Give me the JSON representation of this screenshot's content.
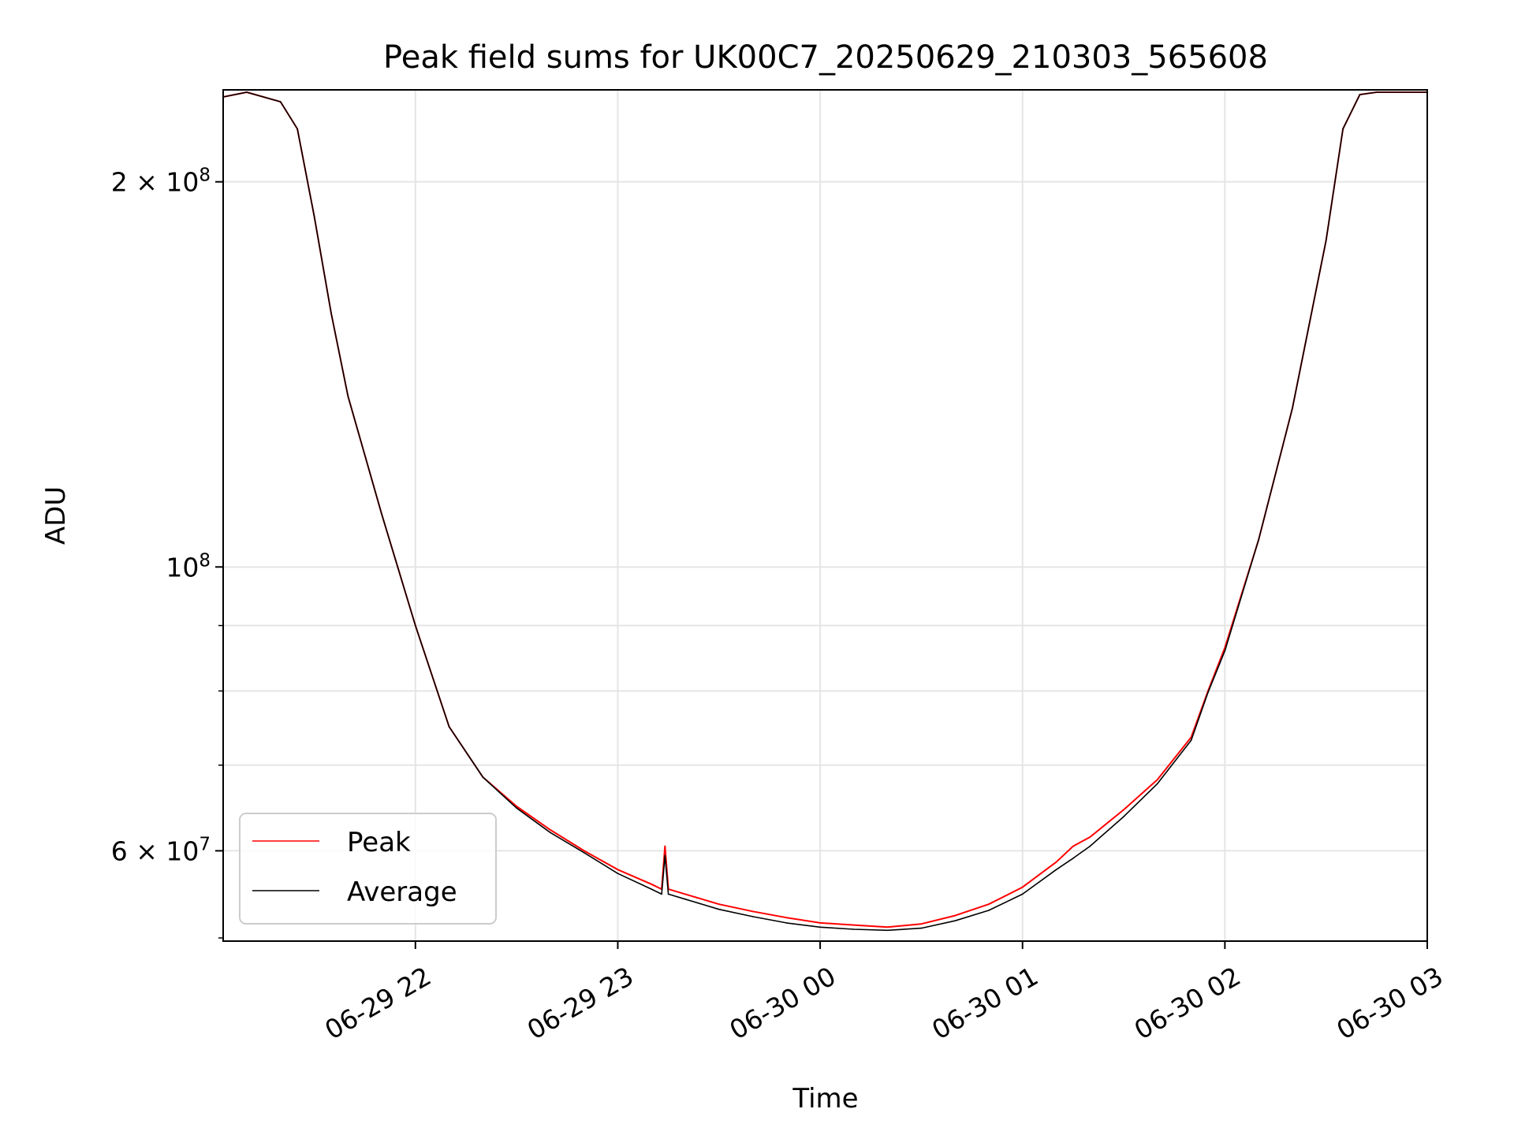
{
  "chart_data": {
    "type": "line",
    "title": "Peak field sums for UK00C7_20250629_210303_565608",
    "xlabel": "Time",
    "ylabel": "ADU",
    "y_scale": "log",
    "grid": true,
    "legend_position": "lower-left",
    "xlim": [
      "2025-06-29 21:03",
      "2025-06-30 03:00"
    ],
    "ylim": [
      51000000,
      236000000
    ],
    "x_ticks": [
      {
        "value": "2025-06-29 22:00",
        "label": "06-29 22"
      },
      {
        "value": "2025-06-29 23:00",
        "label": "06-29 23"
      },
      {
        "value": "2025-06-30 00:00",
        "label": "06-30 00"
      },
      {
        "value": "2025-06-30 01:00",
        "label": "06-30 01"
      },
      {
        "value": "2025-06-30 02:00",
        "label": "06-30 02"
      },
      {
        "value": "2025-06-30 03:00",
        "label": "06-30 03"
      }
    ],
    "y_major_ticks": [
      {
        "value": 60000000,
        "mantissa": "6",
        "times": "×",
        "base": "10",
        "exp": "7"
      },
      {
        "value": 100000000,
        "mantissa": "",
        "times": "",
        "base": "10",
        "exp": "8"
      },
      {
        "value": 200000000,
        "mantissa": "2",
        "times": "×",
        "base": "10",
        "exp": "8"
      }
    ],
    "y_minor_gridlines": [
      70000000,
      80000000,
      90000000
    ],
    "series": [
      {
        "name": "Peak",
        "color": "#ff0000",
        "x": [
          "2025-06-29 21:03",
          "2025-06-29 21:10",
          "2025-06-29 21:20",
          "2025-06-29 21:25",
          "2025-06-29 21:30",
          "2025-06-29 21:35",
          "2025-06-29 21:40",
          "2025-06-29 21:50",
          "2025-06-29 22:00",
          "2025-06-29 22:10",
          "2025-06-29 22:20",
          "2025-06-29 22:30",
          "2025-06-29 22:40",
          "2025-06-29 22:50",
          "2025-06-29 23:00",
          "2025-06-29 23:10",
          "2025-06-29 23:13",
          "2025-06-29 23:14",
          "2025-06-29 23:15",
          "2025-06-29 23:20",
          "2025-06-29 23:30",
          "2025-06-29 23:40",
          "2025-06-29 23:50",
          "2025-06-30 00:00",
          "2025-06-30 00:10",
          "2025-06-30 00:20",
          "2025-06-30 00:30",
          "2025-06-30 00:40",
          "2025-06-30 00:50",
          "2025-06-30 01:00",
          "2025-06-30 01:10",
          "2025-06-30 01:15",
          "2025-06-30 01:20",
          "2025-06-30 01:30",
          "2025-06-30 01:40",
          "2025-06-30 01:50",
          "2025-06-30 01:55",
          "2025-06-30 02:00",
          "2025-06-30 02:10",
          "2025-06-30 02:20",
          "2025-06-30 02:30",
          "2025-06-30 02:35",
          "2025-06-30 02:40",
          "2025-06-30 02:45",
          "2025-06-30 03:00"
        ],
        "y": [
          233000000,
          235000000,
          231000000,
          220000000,
          188000000,
          158000000,
          136000000,
          110000000,
          90000000,
          75000000,
          68500000,
          65000000,
          62300000,
          60000000,
          58000000,
          56500000,
          56000000,
          60500000,
          56000000,
          55500000,
          54500000,
          53800000,
          53200000,
          52700000,
          52500000,
          52300000,
          52600000,
          53400000,
          54500000,
          56200000,
          58800000,
          60500000,
          61500000,
          64600000,
          68200000,
          73600000,
          80000000,
          86500000,
          105000000,
          133000000,
          180000000,
          220000000,
          234000000,
          235000000,
          235000000
        ]
      },
      {
        "name": "Average",
        "color": "#000000",
        "x": [
          "2025-06-29 21:03",
          "2025-06-29 21:10",
          "2025-06-29 21:20",
          "2025-06-29 21:25",
          "2025-06-29 21:30",
          "2025-06-29 21:35",
          "2025-06-29 21:40",
          "2025-06-29 21:50",
          "2025-06-29 22:00",
          "2025-06-29 22:10",
          "2025-06-29 22:20",
          "2025-06-29 22:30",
          "2025-06-29 22:40",
          "2025-06-29 22:50",
          "2025-06-29 23:00",
          "2025-06-29 23:10",
          "2025-06-29 23:13",
          "2025-06-29 23:14",
          "2025-06-29 23:15",
          "2025-06-29 23:20",
          "2025-06-29 23:30",
          "2025-06-29 23:40",
          "2025-06-29 23:50",
          "2025-06-30 00:00",
          "2025-06-30 00:10",
          "2025-06-30 00:20",
          "2025-06-30 00:30",
          "2025-06-30 00:40",
          "2025-06-30 00:50",
          "2025-06-30 01:00",
          "2025-06-30 01:10",
          "2025-06-30 01:15",
          "2025-06-30 01:20",
          "2025-06-30 01:30",
          "2025-06-30 01:40",
          "2025-06-30 01:50",
          "2025-06-30 01:55",
          "2025-06-30 02:00",
          "2025-06-30 02:10",
          "2025-06-30 02:20",
          "2025-06-30 02:30",
          "2025-06-30 02:35",
          "2025-06-30 02:40",
          "2025-06-30 02:45",
          "2025-06-30 03:00"
        ],
        "y": [
          233000000,
          235000000,
          231000000,
          220000000,
          188000000,
          158000000,
          136000000,
          110000000,
          90000000,
          75000000,
          68500000,
          64800000,
          62000000,
          59800000,
          57600000,
          56000000,
          55500000,
          59500000,
          55500000,
          55000000,
          54000000,
          53300000,
          52700000,
          52300000,
          52100000,
          52000000,
          52200000,
          52900000,
          53900000,
          55500000,
          58000000,
          59200000,
          60500000,
          63800000,
          67700000,
          73200000,
          79800000,
          86000000,
          105000000,
          133000000,
          180000000,
          220000000,
          234000000,
          235000000,
          235000000
        ]
      }
    ]
  }
}
